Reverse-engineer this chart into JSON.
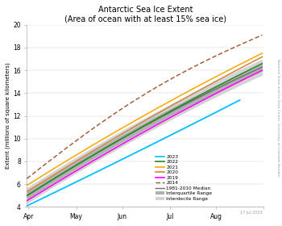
{
  "title_line1": "Antarctic Sea Ice Extent",
  "title_line2": "(Area of ocean with at least 15% sea ice)",
  "ylabel": "Extent (millions of square kilometers)",
  "watermark": "National Snow and Ice Data Center, University of Colorado Boulder",
  "date_label": "17 Jul 2023",
  "xlim_days": [
    59,
    212
  ],
  "ylim": [
    4,
    20
  ],
  "yticks": [
    4,
    6,
    8,
    10,
    12,
    14,
    16,
    18,
    20
  ],
  "month_ticks": [
    60,
    91,
    121,
    152,
    182,
    213
  ],
  "month_labels": [
    "Apr",
    "May",
    "Jun",
    "Jul",
    "Aug",
    ""
  ],
  "colors": {
    "2023": "#00bfff",
    "2022": "#228B22",
    "2021": "#FFA500",
    "2020": "#A0522D",
    "2019": "#FF00FF",
    "2014": "#A0522D",
    "median": "#707070",
    "iqr": "#B0B0B0",
    "idr": "#D3D3D3"
  },
  "background_color": "#ffffff",
  "figsize": [
    3.5,
    2.8
  ],
  "dpi": 100
}
